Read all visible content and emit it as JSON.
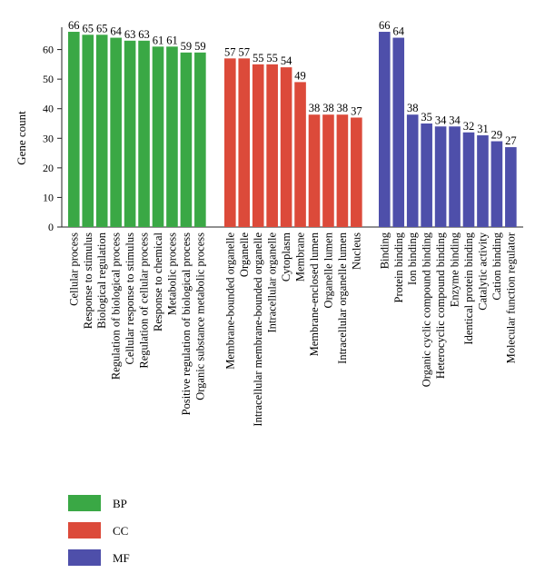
{
  "chart_data": {
    "type": "bar",
    "ylabel": "Gene count",
    "xlabel": "",
    "ylim": [
      0,
      70
    ],
    "yticks": [
      0,
      10,
      20,
      30,
      40,
      50,
      60
    ],
    "grid": false,
    "legend_placement": "bottom-left",
    "groups": [
      {
        "name": "BP",
        "color": "#3aa845",
        "categories": [
          "Cellular process",
          "Response to stimulus",
          "Biological regulation",
          "Regulation of biological process",
          "Cellular response to stimulus",
          "Regulation of cellular process",
          "Response to chemical",
          "Metabolic process",
          "Positive regulation of biological process",
          "Organic substance metabolic process"
        ],
        "values": [
          66,
          65,
          65,
          64,
          63,
          63,
          61,
          61,
          59,
          59
        ]
      },
      {
        "name": "CC",
        "color": "#dc4a3a",
        "categories": [
          "Membrane-bounded organelle",
          "Organelle",
          "Intracellular membrane-bounded organelle",
          "Intracellular organelle",
          "Cytoplasm",
          "Membrane",
          "Membrane-enclosed lumen",
          "Organelle lumen",
          "Intracellular organelle lumen",
          "Nucleus"
        ],
        "values": [
          57,
          57,
          55,
          55,
          54,
          49,
          38,
          38,
          38,
          37
        ]
      },
      {
        "name": "MF",
        "color": "#4e4faa",
        "categories": [
          "Binding",
          "Protein binding",
          "Ion binding",
          "Organic cyclic compound binding",
          "Heterocyclic compound binding",
          "Enzyme binding",
          "Identical protein binding",
          "Catalytic activity",
          "Cation binding",
          "Molecular function regulator"
        ],
        "values": [
          66,
          64,
          38,
          35,
          34,
          34,
          32,
          31,
          29,
          27
        ]
      }
    ]
  }
}
